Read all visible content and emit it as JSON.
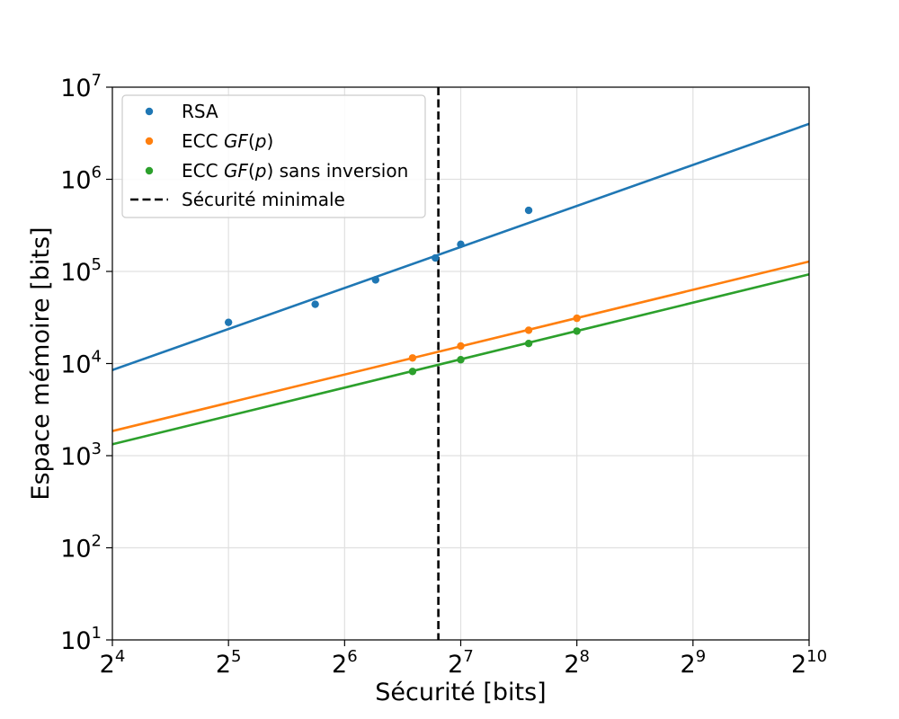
{
  "chart_data": {
    "type": "scatter",
    "xlabel": "Sécurité [bits]",
    "ylabel": "Espace mémoire [bits]",
    "x_scale": "log2",
    "y_scale": "log10",
    "xlim": [
      16,
      1024
    ],
    "ylim": [
      10,
      10000000
    ],
    "x_ticks": [
      {
        "value": 16,
        "base": "2",
        "exp": "4"
      },
      {
        "value": 32,
        "base": "2",
        "exp": "5"
      },
      {
        "value": 64,
        "base": "2",
        "exp": "6"
      },
      {
        "value": 128,
        "base": "2",
        "exp": "7"
      },
      {
        "value": 256,
        "base": "2",
        "exp": "8"
      },
      {
        "value": 512,
        "base": "2",
        "exp": "9"
      },
      {
        "value": 1024,
        "base": "2",
        "exp": "10"
      }
    ],
    "y_ticks": [
      {
        "value": 10,
        "base": "10",
        "exp": "1"
      },
      {
        "value": 100,
        "base": "10",
        "exp": "2"
      },
      {
        "value": 1000,
        "base": "10",
        "exp": "3"
      },
      {
        "value": 10000,
        "base": "10",
        "exp": "4"
      },
      {
        "value": 100000,
        "base": "10",
        "exp": "5"
      },
      {
        "value": 1000000,
        "base": "10",
        "exp": "6"
      },
      {
        "value": 10000000,
        "base": "10",
        "exp": "7"
      }
    ],
    "grid": true,
    "legend_position": "top-left",
    "series": [
      {
        "name": "RSA",
        "name_parts": [
          {
            "text": "RSA",
            "italic": false
          }
        ],
        "color": "#1f77b4",
        "points": [
          {
            "x": 32,
            "y": 28000
          },
          {
            "x": 53.7,
            "y": 44000
          },
          {
            "x": 77,
            "y": 81000
          },
          {
            "x": 110,
            "y": 140000
          },
          {
            "x": 128,
            "y": 197000
          },
          {
            "x": 192,
            "y": 460000
          }
        ],
        "fit": {
          "x": [
            16,
            1024
          ],
          "y": [
            8500,
            4000000
          ]
        }
      },
      {
        "name": "ECC GF(p)",
        "name_parts": [
          {
            "text": "ECC ",
            "italic": false
          },
          {
            "text": "GF",
            "italic": true
          },
          {
            "text": "(",
            "italic": false
          },
          {
            "text": "p",
            "italic": true
          },
          {
            "text": ")",
            "italic": false
          }
        ],
        "color": "#ff7f0e",
        "points": [
          {
            "x": 96,
            "y": 11500
          },
          {
            "x": 128,
            "y": 15500
          },
          {
            "x": 192,
            "y": 23000
          },
          {
            "x": 256,
            "y": 31000
          }
        ],
        "fit": {
          "x": [
            16,
            1024
          ],
          "y": [
            1850,
            128000
          ]
        }
      },
      {
        "name": "ECC GF(p) sans inversion",
        "name_parts": [
          {
            "text": "ECC ",
            "italic": false
          },
          {
            "text": "GF",
            "italic": true
          },
          {
            "text": "(",
            "italic": false
          },
          {
            "text": "p",
            "italic": true
          },
          {
            "text": ") sans inversion",
            "italic": false
          }
        ],
        "color": "#2ca02c",
        "points": [
          {
            "x": 96,
            "y": 8200
          },
          {
            "x": 128,
            "y": 11000
          },
          {
            "x": 192,
            "y": 16500
          },
          {
            "x": 256,
            "y": 22500
          }
        ],
        "fit": {
          "x": [
            16,
            1024
          ],
          "y": [
            1330,
            93000
          ]
        }
      }
    ],
    "reference_line": {
      "name": "Sécurité minimale",
      "x": 112,
      "color": "#000000",
      "style": "dashed"
    }
  }
}
